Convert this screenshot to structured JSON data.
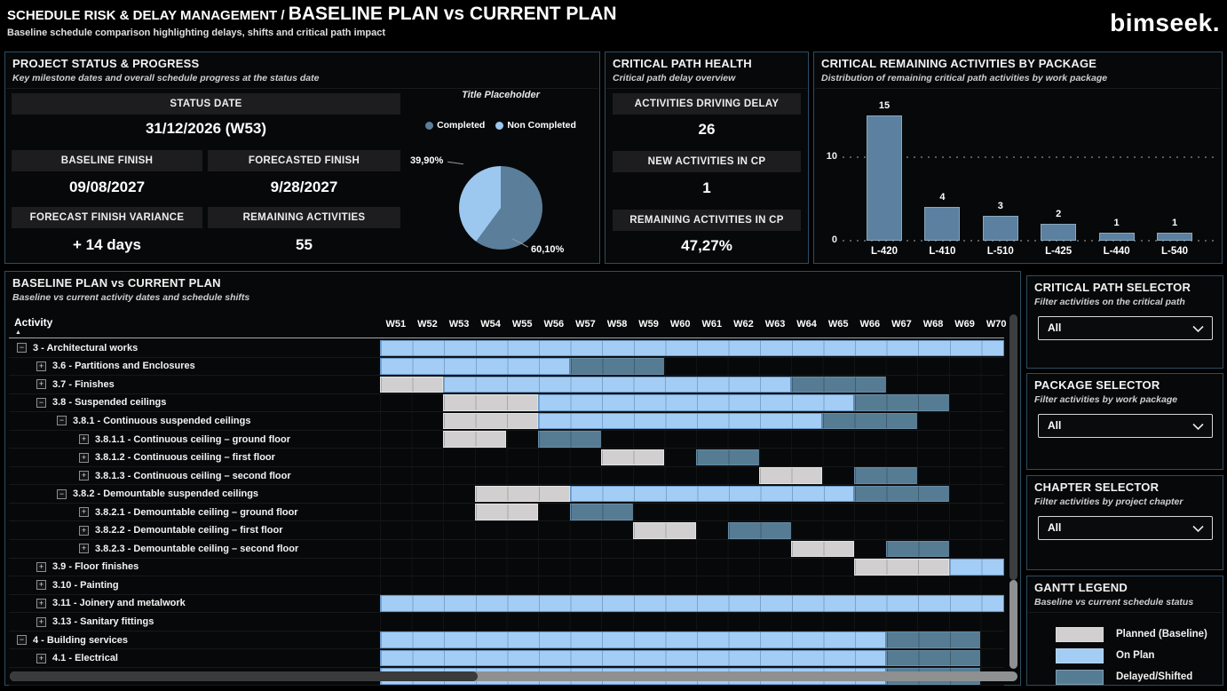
{
  "header": {
    "breadcrumb": "SCHEDULE RISK & DELAY MANAGEMENT / ",
    "title": "BASELINE PLAN vs CURRENT PLAN",
    "subtitle": "Baseline schedule comparison highlighting delays, shifts and critical path impact",
    "logo": "bimseek."
  },
  "colors": {
    "on_plan": "#a3cdf5",
    "delayed": "#567c94",
    "planned": "#d1cfcf",
    "bar": "#5b80a0",
    "pie_completed": "#5b7e9a",
    "pie_non_completed": "#9cc7ef"
  },
  "status_panel": {
    "title": "PROJECT STATUS & PROGRESS",
    "subtitle": "Key milestone dates and overall schedule progress at the status date",
    "status_date_label": "STATUS DATE",
    "status_date_value": "31/12/2026 (W53)",
    "baseline_finish_label": "BASELINE FINISH",
    "baseline_finish_value": "09/08/2027",
    "forecasted_finish_label": "FORECASTED FINISH",
    "forecasted_finish_value": "9/28/2027",
    "variance_label": "FORECAST FINISH VARIANCE",
    "variance_value": "+ 14 days",
    "remaining_label": "REMAINING ACTIVITIES",
    "remaining_value": "55",
    "pie": {
      "title": "Title Placeholder",
      "slices": [
        {
          "label": "Completed",
          "pct": 60.1,
          "display": "60,10%"
        },
        {
          "label": "Non Completed",
          "pct": 39.9,
          "display": "39,90%"
        }
      ]
    }
  },
  "cp_health": {
    "title": "CRITICAL PATH HEALTH",
    "subtitle": "Critical path delay overview",
    "kpis": [
      {
        "label": "ACTIVITIES DRIVING DELAY",
        "value": "26"
      },
      {
        "label": "NEW ACTIVITIES IN CP",
        "value": "1"
      },
      {
        "label": "REMAINING ACTIVITIES IN CP",
        "value": "47,27%"
      }
    ]
  },
  "package_panel": {
    "title": "CRITICAL REMAINING ACTIVITIES BY PACKAGE",
    "subtitle": "Distribution of remaining critical path activities by work package"
  },
  "chart_data": [
    {
      "type": "bar",
      "title": "CRITICAL REMAINING ACTIVITIES BY PACKAGE",
      "categories": [
        "L-420",
        "L-410",
        "L-510",
        "L-425",
        "L-440",
        "L-540"
      ],
      "values": [
        15,
        4,
        3,
        2,
        1,
        1
      ],
      "xlabel": "",
      "ylabel": "",
      "ylim": [
        0,
        16
      ],
      "yticks": [
        0,
        10
      ],
      "grid": "dotted horizontal",
      "legend_position": "none"
    },
    {
      "type": "pie",
      "title": "Title Placeholder",
      "labels": [
        "Completed",
        "Non Completed"
      ],
      "values": [
        60.1,
        39.9
      ],
      "display_labels": [
        "60,10%",
        "39,90%"
      ],
      "legend_position": "top"
    }
  ],
  "gantt": {
    "title": "BASELINE PLAN vs CURRENT PLAN",
    "subtitle": "Baseline vs current activity dates and schedule shifts",
    "column_header": "Activity",
    "weeks": [
      "W51",
      "W52",
      "W53",
      "W54",
      "W55",
      "W56",
      "W57",
      "W58",
      "W59",
      "W60",
      "W61",
      "W62",
      "W63",
      "W64",
      "W65",
      "W66",
      "W67",
      "W68",
      "W69",
      "W70"
    ],
    "rows": [
      {
        "label": "3 - Architectural works",
        "level": 0,
        "toggle": "collapse",
        "segments": [
          {
            "t": "on",
            "s": 0,
            "e": 19.75
          }
        ]
      },
      {
        "label": "3.6 - Partitions and Enclosures",
        "level": 1,
        "toggle": "expand",
        "segments": [
          {
            "t": "on",
            "s": 0,
            "e": 6
          },
          {
            "t": "del",
            "s": 6,
            "e": 9
          }
        ]
      },
      {
        "label": "3.7 - Finishes",
        "level": 1,
        "toggle": "expand",
        "segments": [
          {
            "t": "plan",
            "s": 0,
            "e": 2
          },
          {
            "t": "on",
            "s": 2,
            "e": 13
          },
          {
            "t": "del",
            "s": 13,
            "e": 16
          }
        ]
      },
      {
        "label": "3.8 - Suspended ceilings",
        "level": 1,
        "toggle": "collapse",
        "segments": [
          {
            "t": "plan",
            "s": 2,
            "e": 5
          },
          {
            "t": "on",
            "s": 5,
            "e": 15
          },
          {
            "t": "del",
            "s": 15,
            "e": 18
          }
        ]
      },
      {
        "label": "3.8.1 - Continuous suspended ceilings",
        "level": 2,
        "toggle": "collapse",
        "segments": [
          {
            "t": "plan",
            "s": 2,
            "e": 5
          },
          {
            "t": "on",
            "s": 5,
            "e": 14
          },
          {
            "t": "del",
            "s": 14,
            "e": 17
          }
        ]
      },
      {
        "label": "3.8.1.1 - Continuous ceiling – ground floor",
        "level": 3,
        "toggle": "expand",
        "segments": [
          {
            "t": "plan",
            "s": 2,
            "e": 4
          },
          {
            "t": "del",
            "s": 5,
            "e": 7
          }
        ]
      },
      {
        "label": "3.8.1.2 - Continuous ceiling – first floor",
        "level": 3,
        "toggle": "expand",
        "segments": [
          {
            "t": "plan",
            "s": 7,
            "e": 9
          },
          {
            "t": "del",
            "s": 10,
            "e": 12
          }
        ]
      },
      {
        "label": "3.8.1.3 - Continuous ceiling – second floor",
        "level": 3,
        "toggle": "expand",
        "segments": [
          {
            "t": "plan",
            "s": 12,
            "e": 14
          },
          {
            "t": "del",
            "s": 15,
            "e": 17
          }
        ]
      },
      {
        "label": "3.8.2 - Demountable suspended ceilings",
        "level": 2,
        "toggle": "collapse",
        "segments": [
          {
            "t": "plan",
            "s": 3,
            "e": 6
          },
          {
            "t": "on",
            "s": 6,
            "e": 15
          },
          {
            "t": "del",
            "s": 15,
            "e": 18
          }
        ]
      },
      {
        "label": "3.8.2.1 - Demountable ceiling – ground floor",
        "level": 3,
        "toggle": "expand",
        "segments": [
          {
            "t": "plan",
            "s": 3,
            "e": 5
          },
          {
            "t": "del",
            "s": 6,
            "e": 8
          }
        ]
      },
      {
        "label": "3.8.2.2 - Demountable ceiling – first floor",
        "level": 3,
        "toggle": "expand",
        "segments": [
          {
            "t": "plan",
            "s": 8,
            "e": 10
          },
          {
            "t": "del",
            "s": 11,
            "e": 13
          }
        ]
      },
      {
        "label": "3.8.2.3 - Demountable ceiling – second floor",
        "level": 3,
        "toggle": "expand",
        "segments": [
          {
            "t": "plan",
            "s": 13,
            "e": 15
          },
          {
            "t": "del",
            "s": 16,
            "e": 18
          }
        ]
      },
      {
        "label": "3.9 - Floor finishes",
        "level": 1,
        "toggle": "expand",
        "segments": [
          {
            "t": "plan",
            "s": 15,
            "e": 18
          },
          {
            "t": "on",
            "s": 18,
            "e": 19.75
          }
        ]
      },
      {
        "label": "3.10 - Painting",
        "level": 1,
        "toggle": "expand",
        "segments": []
      },
      {
        "label": "3.11 - Joinery and metalwork",
        "level": 1,
        "toggle": "expand",
        "segments": [
          {
            "t": "on",
            "s": 0,
            "e": 19.75
          }
        ]
      },
      {
        "label": "3.13 - Sanitary fittings",
        "level": 1,
        "toggle": "expand",
        "segments": []
      },
      {
        "label": "4 - Building services",
        "level": 0,
        "toggle": "collapse",
        "segments": [
          {
            "t": "on",
            "s": 0,
            "e": 16
          },
          {
            "t": "del",
            "s": 16,
            "e": 19
          }
        ]
      },
      {
        "label": "4.1 - Electrical",
        "level": 1,
        "toggle": "expand",
        "segments": [
          {
            "t": "on",
            "s": 0,
            "e": 16
          },
          {
            "t": "del",
            "s": 16,
            "e": 19
          }
        ]
      },
      {
        "label": "",
        "level": 1,
        "toggle": "none",
        "segments": [
          {
            "t": "on",
            "s": 0,
            "e": 16
          },
          {
            "t": "del",
            "s": 16,
            "e": 19
          }
        ]
      }
    ]
  },
  "selectors": [
    {
      "title": "CRITICAL PATH SELECTOR",
      "subtitle": "Filter activities on the critical path",
      "value": "All"
    },
    {
      "title": "PACKAGE SELECTOR",
      "subtitle": "Filter activities by work package",
      "value": "All"
    },
    {
      "title": "CHAPTER SELECTOR",
      "subtitle": "Filter activities by project chapter",
      "value": "All"
    }
  ],
  "gantt_legend": {
    "title": "GANTT LEGEND",
    "subtitle": "Baseline vs current schedule status",
    "items": [
      {
        "label": "Planned (Baseline)",
        "type": "plan"
      },
      {
        "label": "On Plan",
        "type": "on"
      },
      {
        "label": "Delayed/Shifted",
        "type": "del"
      }
    ]
  }
}
